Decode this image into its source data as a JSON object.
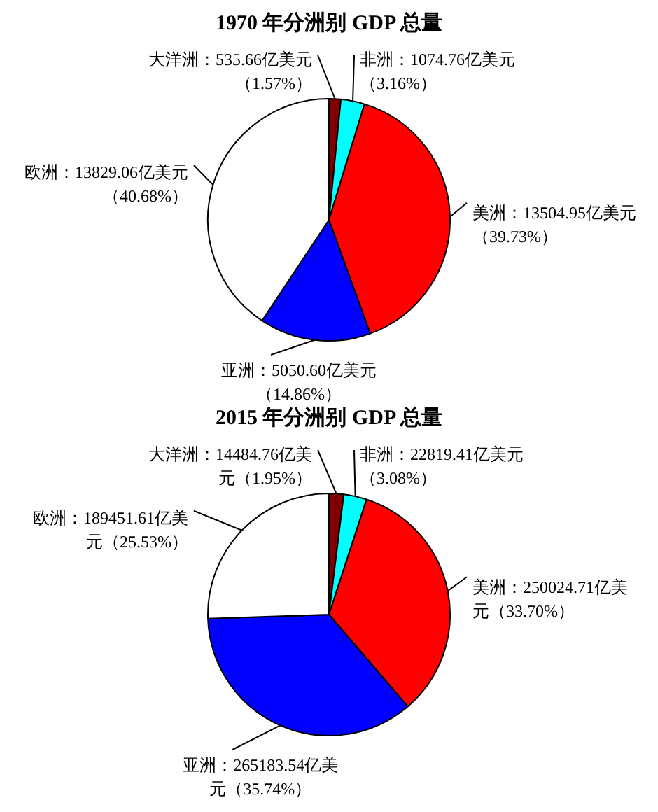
{
  "chart_data": [
    {
      "type": "pie",
      "title": "1970 年分洲别 GDP 总量",
      "categories": [
        "大洋洲",
        "非洲",
        "美洲",
        "亚洲",
        "欧洲"
      ],
      "values": [
        535.66,
        1074.76,
        13504.95,
        5050.6,
        13829.06
      ],
      "colors": [
        "#800000",
        "#00ffff",
        "#ff0000",
        "#0000ff",
        "#ffffff"
      ],
      "value_labels": [
        "535.66亿美元（1.57%）",
        "1074.76亿美元（3.16%）",
        "13504.95亿美元（39.73%）",
        "5050.60亿美元（14.86%）",
        "13829.06亿美元（40.68%）"
      ]
    },
    {
      "type": "pie",
      "title": "2015 年分洲别 GDP 总量",
      "categories": [
        "大洋洲",
        "非洲",
        "美洲",
        "亚洲",
        "欧洲"
      ],
      "values": [
        14484.76,
        22819.41,
        250024.71,
        265183.54,
        189451.61
      ],
      "colors": [
        "#800000",
        "#00ffff",
        "#ff0000",
        "#0000ff",
        "#ffffff"
      ],
      "value_labels": [
        "14484.76亿美元（1.95%）",
        "22819.41亿美元（3.08%）",
        "250024.71亿美元（33.70%）",
        "265183.54亿美元（35.74%）",
        "189451.61亿美元（25.53%）"
      ]
    }
  ]
}
